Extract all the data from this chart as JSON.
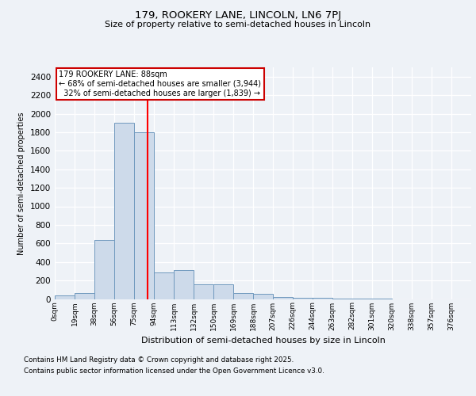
{
  "title1": "179, ROOKERY LANE, LINCOLN, LN6 7PJ",
  "title2": "Size of property relative to semi-detached houses in Lincoln",
  "xlabel": "Distribution of semi-detached houses by size in Lincoln",
  "ylabel": "Number of semi-detached properties",
  "bin_labels": [
    "0sqm",
    "19sqm",
    "38sqm",
    "56sqm",
    "75sqm",
    "94sqm",
    "113sqm",
    "132sqm",
    "150sqm",
    "169sqm",
    "188sqm",
    "207sqm",
    "226sqm",
    "244sqm",
    "263sqm",
    "282sqm",
    "301sqm",
    "320sqm",
    "338sqm",
    "357sqm",
    "376sqm"
  ],
  "bar_heights": [
    40,
    65,
    640,
    1900,
    1800,
    290,
    310,
    160,
    160,
    65,
    55,
    25,
    15,
    10,
    5,
    2,
    1,
    0,
    0,
    0,
    0
  ],
  "bar_color": "#cddaea",
  "bar_edge_color": "#7099be",
  "property_size": 88,
  "pct_smaller": 68,
  "count_smaller": "3,944",
  "pct_larger": 32,
  "count_larger": "1,839",
  "annotation_box_color": "#ffffff",
  "annotation_border_color": "#cc0000",
  "ylim": [
    0,
    2400
  ],
  "yticks": [
    0,
    200,
    400,
    600,
    800,
    1000,
    1200,
    1400,
    1600,
    1800,
    2000,
    2200,
    2400
  ],
  "footer1": "Contains HM Land Registry data © Crown copyright and database right 2025.",
  "footer2": "Contains public sector information licensed under the Open Government Licence v3.0.",
  "background_color": "#eef2f7"
}
